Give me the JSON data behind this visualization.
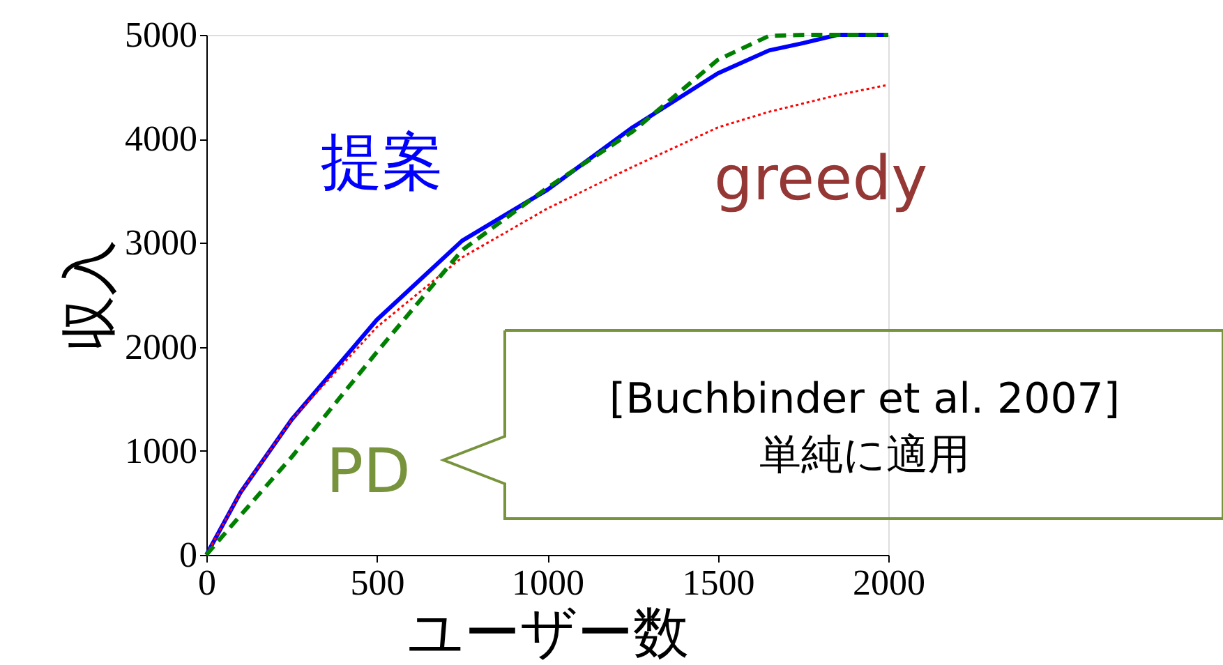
{
  "chart_data": {
    "type": "line",
    "xlabel": "ユーザー数",
    "ylabel": "収入",
    "x": [
      0,
      100,
      250,
      500,
      750,
      1000,
      1250,
      1500,
      1650,
      1750,
      1850,
      2000
    ],
    "series": [
      {
        "name": "提案",
        "color": "#0000ff",
        "line_style": "solid",
        "values": [
          0,
          600,
          1300,
          2260,
          3020,
          3510,
          4110,
          4630,
          4850,
          4920,
          5000,
          5000
        ]
      },
      {
        "name": "greedy",
        "color": "#ff0000",
        "line_style": "dotted",
        "values": [
          0,
          600,
          1300,
          2190,
          2860,
          3330,
          3730,
          4110,
          4260,
          4340,
          4420,
          4520
        ]
      },
      {
        "name": "PD",
        "color": "#008000",
        "line_style": "dashed",
        "values": [
          0,
          380,
          940,
          1950,
          2930,
          3530,
          4070,
          4760,
          4990,
          5000,
          5000,
          5000
        ]
      }
    ],
    "xlim": [
      0,
      2000
    ],
    "xticks": [
      0,
      500,
      1000,
      1500,
      2000
    ],
    "ylim": [
      0,
      5000
    ],
    "yticks": [
      0,
      1000,
      2000,
      3000,
      4000,
      5000
    ],
    "grid": false,
    "legend": false,
    "annotations": [
      "[Buchbinder et al. 2007]\n単純に適用"
    ]
  }
}
